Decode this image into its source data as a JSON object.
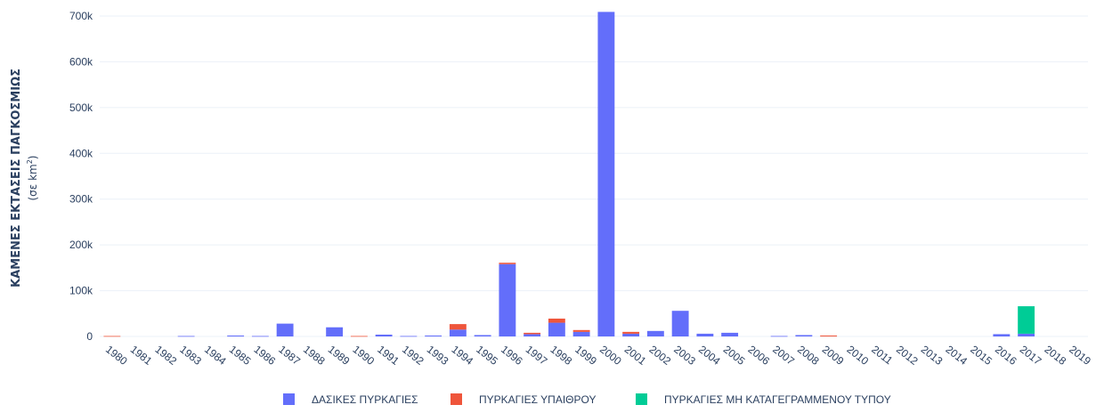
{
  "chart_data": {
    "type": "bar",
    "stacked": true,
    "ylabel": "ΚΑΜΕΝΕΣ ΕΚΤΑΣΕΙΣ ΠΑΓΚΟΣΜΙΩΣ",
    "ylabel_unit_prefix": "(σε km",
    "ylabel_unit_sup": "2",
    "ylabel_unit_suffix": ")",
    "ylim": [
      0,
      700000
    ],
    "yticks": [
      {
        "value": 0,
        "label": "0"
      },
      {
        "value": 100000,
        "label": "100k"
      },
      {
        "value": 200000,
        "label": "200k"
      },
      {
        "value": 300000,
        "label": "300k"
      },
      {
        "value": 400000,
        "label": "400k"
      },
      {
        "value": 500000,
        "label": "500k"
      },
      {
        "value": 600000,
        "label": "600k"
      },
      {
        "value": 700000,
        "label": "700k"
      }
    ],
    "grid": true,
    "legend_position": "bottom",
    "categories": [
      "1980",
      "1981",
      "1982",
      "1983",
      "1984",
      "1985",
      "1986",
      "1987",
      "1988",
      "1989",
      "1990",
      "1991",
      "1992",
      "1993",
      "1994",
      "1995",
      "1996",
      "1997",
      "1998",
      "1999",
      "2000",
      "2001",
      "2002",
      "2003",
      "2004",
      "2005",
      "2006",
      "2007",
      "2008",
      "2009",
      "2010",
      "2011",
      "2012",
      "2013",
      "2014",
      "2015",
      "2016",
      "2017",
      "2018",
      "2019"
    ],
    "series": [
      {
        "name": "ΔΑΣΙΚΕΣ ΠΥΡΚΑΓΙΕΣ",
        "color": "#636efa",
        "values": [
          0,
          0,
          0,
          1000,
          0,
          2000,
          1000,
          28000,
          0,
          20000,
          0,
          4000,
          1000,
          2000,
          15000,
          3000,
          158000,
          5000,
          30000,
          10000,
          709000,
          6000,
          12000,
          56000,
          6000,
          8000,
          0,
          1000,
          3000,
          0,
          0,
          0,
          0,
          0,
          0,
          0,
          5000,
          6000,
          0,
          0
        ]
      },
      {
        "name": "ΠΥΡΚΑΓΙΕΣ ΥΠΑΙΘΡΟΥ",
        "color": "#ef553b",
        "values": [
          1000,
          0,
          0,
          0,
          0,
          0,
          0,
          0,
          0,
          0,
          1000,
          0,
          0,
          0,
          12000,
          0,
          3000,
          3000,
          9000,
          4000,
          0,
          4000,
          0,
          0,
          0,
          0,
          0,
          0,
          0,
          2000,
          0,
          0,
          0,
          0,
          0,
          0,
          0,
          0,
          0,
          0
        ]
      },
      {
        "name": "ΠΥΡΚΑΓΙΕΣ ΜΗ ΚΑΤΑΓΕΓΡΑΜΜΕΝΟΥ ΤΥΠΟΥ",
        "color": "#00cc96",
        "values": [
          0,
          0,
          0,
          0,
          0,
          0,
          0,
          0,
          0,
          0,
          0,
          0,
          0,
          0,
          0,
          0,
          0,
          0,
          0,
          0,
          0,
          0,
          0,
          0,
          0,
          0,
          0,
          0,
          0,
          0,
          0,
          0,
          0,
          0,
          0,
          0,
          0,
          60000,
          0,
          0
        ]
      }
    ]
  }
}
